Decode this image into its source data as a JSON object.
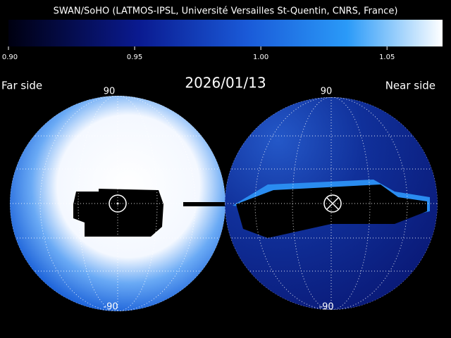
{
  "title": "SWAN/SoHO (LATMOS-IPSL, Université Versailles St-Quentin, CNRS, France)",
  "colorbar": {
    "range": [
      0.9,
      1.072
    ],
    "ticks": [
      {
        "value": 0.9,
        "label": "0.90"
      },
      {
        "value": 0.95,
        "label": "0.95"
      },
      {
        "value": 1.0,
        "label": "1.00"
      },
      {
        "value": 1.05,
        "label": "1.05"
      }
    ]
  },
  "date": "2026/01/13",
  "far_side": {
    "label": "Far side",
    "top_label": "90",
    "bottom_label": "-90"
  },
  "near_side": {
    "label": "Near side",
    "top_label": "90",
    "bottom_label": "-90"
  }
}
